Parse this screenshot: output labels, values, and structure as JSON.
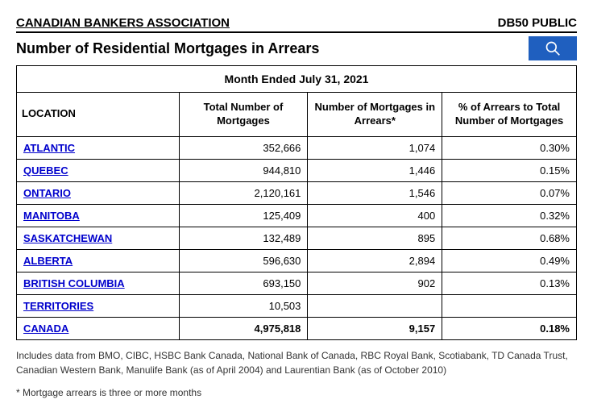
{
  "header": {
    "org": "CANADIAN BANKERS ASSOCIATION",
    "code": "DB50 PUBLIC"
  },
  "title": "Number of Residential Mortgages in Arrears",
  "month_ended": "Month Ended July 31, 2021",
  "columns": {
    "location": "LOCATION",
    "total": "Total Number of Mortgages",
    "arrears": "Number of Mortgages in Arrears*",
    "pct": "% of Arrears to Total Number of Mortgages"
  },
  "rows": [
    {
      "location": "ATLANTIC",
      "total": "352,666",
      "arrears": "1,074",
      "pct": "0.30%"
    },
    {
      "location": "QUEBEC",
      "total": "944,810",
      "arrears": "1,446",
      "pct": "0.15%"
    },
    {
      "location": "ONTARIO",
      "total": "2,120,161",
      "arrears": "1,546",
      "pct": "0.07%"
    },
    {
      "location": "MANITOBA",
      "total": "125,409",
      "arrears": "400",
      "pct": "0.32%"
    },
    {
      "location": "SASKATCHEWAN",
      "total": "132,489",
      "arrears": "895",
      "pct": "0.68%"
    },
    {
      "location": "ALBERTA",
      "total": "596,630",
      "arrears": "2,894",
      "pct": "0.49%"
    },
    {
      "location": "BRITISH COLUMBIA",
      "total": "693,150",
      "arrears": "902",
      "pct": "0.13%"
    },
    {
      "location": "TERRITORIES",
      "total": "10,503",
      "arrears": "",
      "pct": ""
    }
  ],
  "total_row": {
    "location": "CANADA",
    "total": "4,975,818",
    "arrears": "9,157",
    "pct": "0.18%"
  },
  "footnote1": "Includes data from BMO, CIBC, HSBC Bank Canada, National Bank of Canada, RBC Royal Bank, Scotiabank, TD Canada Trust, Canadian Western Bank, Manulife Bank (as of April 2004) and Laurentian Bank (as of October 2010)",
  "footnote2": "* Mortgage arrears is three or more months",
  "styling": {
    "link_color": "#0000cc",
    "search_bg": "#1f5fbf",
    "border_color": "#000000",
    "background": "#ffffff"
  }
}
